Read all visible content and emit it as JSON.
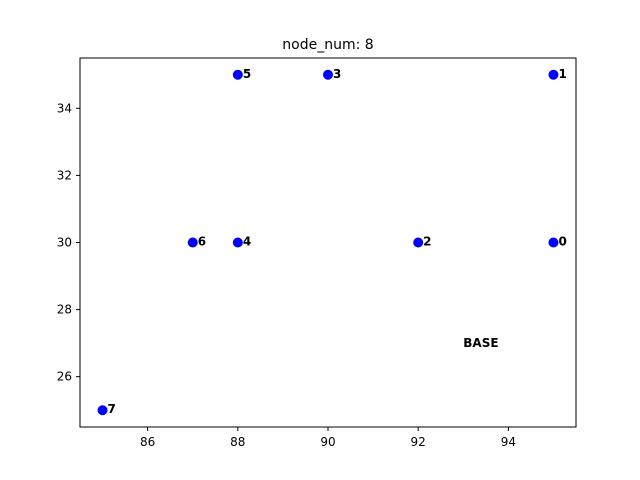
{
  "chart_data": {
    "type": "scatter",
    "title": "node_num: 8",
    "xlabel": "",
    "ylabel": "",
    "xlim": [
      84.5,
      95.5
    ],
    "ylim": [
      24.5,
      35.5
    ],
    "x_ticks": [
      86,
      88,
      90,
      92,
      94
    ],
    "y_ticks": [
      26,
      28,
      30,
      32,
      34
    ],
    "grid": false,
    "legend": "none",
    "marker_color": "#0000ff",
    "points": [
      {
        "label": "0",
        "x": 95,
        "y": 30
      },
      {
        "label": "1",
        "x": 95,
        "y": 35
      },
      {
        "label": "2",
        "x": 92,
        "y": 30
      },
      {
        "label": "3",
        "x": 90,
        "y": 35
      },
      {
        "label": "4",
        "x": 88,
        "y": 30
      },
      {
        "label": "5",
        "x": 88,
        "y": 35
      },
      {
        "label": "6",
        "x": 87,
        "y": 30
      },
      {
        "label": "7",
        "x": 85,
        "y": 25
      }
    ],
    "annotations": [
      {
        "text": "BASE",
        "x": 93,
        "y": 27
      }
    ]
  }
}
